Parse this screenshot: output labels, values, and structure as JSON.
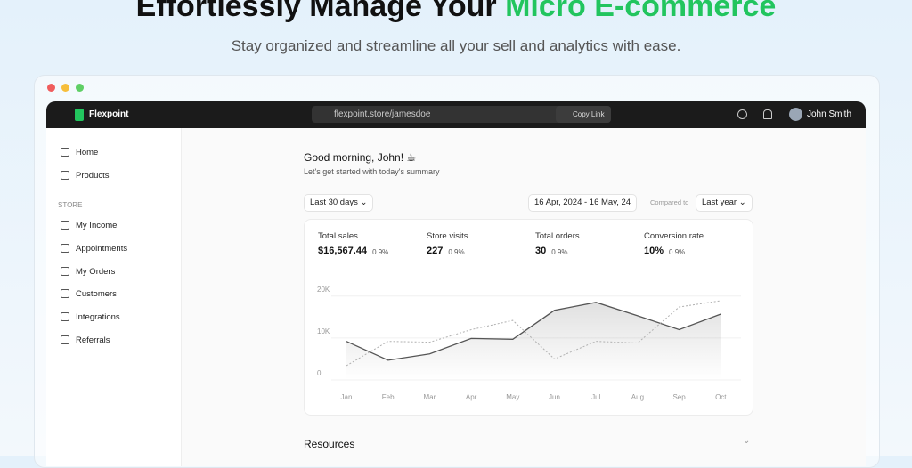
{
  "hero": {
    "title_lead": "Effortlessly Manage Your",
    "title_highlight": "Micro E-commerce",
    "subtitle": "Stay organized and streamline all your sell and analytics with ease."
  },
  "app": {
    "brand": "Flexpoint",
    "url": "flexpoint.store/jamesdoe",
    "copy_link": "Copy Link",
    "user": "John Smith"
  },
  "sidebar": {
    "items": [
      "Home",
      "Products"
    ],
    "section": "STORE",
    "store_items": [
      "My Income",
      "Appointments",
      "My Orders",
      "Customers",
      "Integrations",
      "Referrals"
    ]
  },
  "main": {
    "greeting": "Good morning, John! ☕",
    "subgreeting": "Let's get started with today's summary",
    "range": "Last 30 days",
    "dates": "16 Apr, 2024 - 16 May, 24",
    "compared_label": "Compared to",
    "compare": "Last year"
  },
  "stats": [
    {
      "label": "Total sales",
      "value": "$16,567.44",
      "change": "0.9%"
    },
    {
      "label": "Store visits",
      "value": "227",
      "change": "0.9%"
    },
    {
      "label": "Total orders",
      "value": "30",
      "change": "0.9%"
    },
    {
      "label": "Conversion rate",
      "value": "10%",
      "change": "0.9%"
    }
  ],
  "chart": {
    "type": "line",
    "categories": [
      "Jan",
      "Feb",
      "Mar",
      "Apr",
      "May",
      "Jun",
      "Jul",
      "Aug",
      "Sep",
      "Oct"
    ],
    "series": [
      {
        "color": "#555555",
        "dashed": false,
        "fill": true,
        "values": [
          9200,
          4700,
          6200,
          9900,
          9700,
          16600,
          18500,
          15300,
          12000,
          15700
        ]
      },
      {
        "color": "#b0b0b0",
        "dashed": true,
        "fill": false,
        "values": [
          3400,
          9200,
          9000,
          12000,
          14200,
          5000,
          9200,
          8800,
          17400,
          18900
        ]
      }
    ],
    "ylim": [
      0,
      22500
    ],
    "yticks": [
      0,
      {
        "value": 10000,
        "label": "10K"
      },
      {
        "value": 20000,
        "label": "20K"
      }
    ],
    "grid": true
  },
  "resources": {
    "title": "Resources"
  }
}
